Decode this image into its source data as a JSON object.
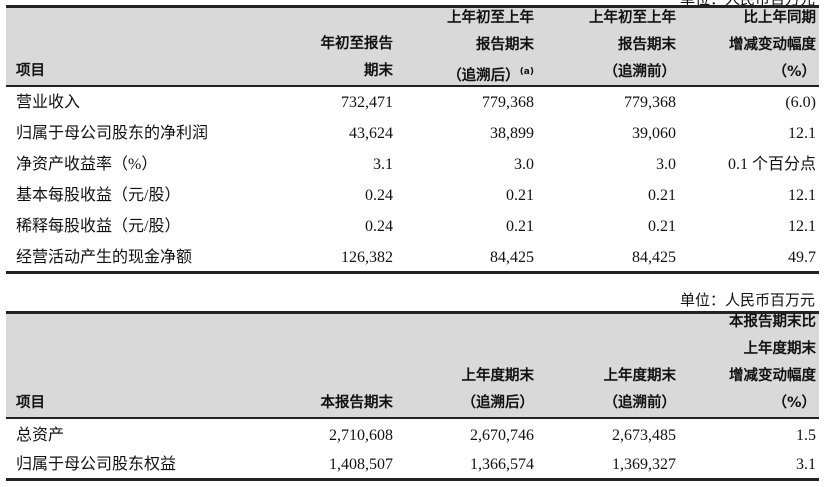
{
  "table1": {
    "unit_label": "单位：人民币百万元",
    "headers": {
      "item": "项目",
      "col1": [
        "年初至报告",
        "期末"
      ],
      "col2": [
        "上年初至上年",
        "报告期末",
        "（追溯后）"
      ],
      "col2_note": "(a)",
      "col3": [
        "上年初至上年",
        "报告期末",
        "（追溯前）"
      ],
      "col4": [
        "比上年同期",
        "增减变动幅度",
        "（%）"
      ]
    },
    "rows": [
      {
        "label": "营业收入",
        "v1": "732,471",
        "v2": "779,368",
        "v3": "779,368",
        "v4": "(6.0)"
      },
      {
        "label": "归属于母公司股东的净利润",
        "v1": "43,624",
        "v2": "38,899",
        "v3": "39,060",
        "v4": "12.1"
      },
      {
        "label": "净资产收益率（%）",
        "v1": "3.1",
        "v2": "3.0",
        "v3": "3.0",
        "v4": "0.1 个百分点"
      },
      {
        "label": "基本每股收益（元/股）",
        "v1": "0.24",
        "v2": "0.21",
        "v3": "0.21",
        "v4": "12.1"
      },
      {
        "label": "稀释每股收益（元/股）",
        "v1": "0.24",
        "v2": "0.21",
        "v3": "0.21",
        "v4": "12.1"
      },
      {
        "label": "经营活动产生的现金净额",
        "v1": "126,382",
        "v2": "84,425",
        "v3": "84,425",
        "v4": "49.7"
      }
    ]
  },
  "table2": {
    "unit_label": "单位：人民币百万元",
    "headers": {
      "item": "项目",
      "col1": [
        "本报告期末"
      ],
      "col2": [
        "上年度期末",
        "（追溯后）"
      ],
      "col3": [
        "上年度期末",
        "（追溯前）"
      ],
      "col4": [
        "本报告期末比",
        "上年度期末",
        "增减变动幅度",
        "（%）"
      ]
    },
    "rows": [
      {
        "label": "总资产",
        "v1": "2,710,608",
        "v2": "2,670,746",
        "v3": "2,673,485",
        "v4": "1.5"
      },
      {
        "label": "归属于母公司股东权益",
        "v1": "1,408,507",
        "v2": "1,366,574",
        "v3": "1,369,327",
        "v4": "3.1"
      }
    ]
  }
}
